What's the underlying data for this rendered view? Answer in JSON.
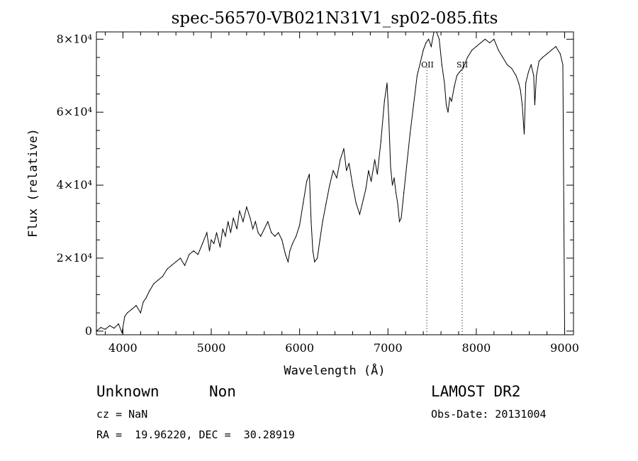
{
  "chart_data": {
    "type": "line",
    "title": "spec-56570-VB021N31V1_sp02-085.fits",
    "xlabel": "Wavelength (Å)",
    "ylabel": "Flux (relative)",
    "xlim": [
      3700,
      9100
    ],
    "ylim": [
      -1000,
      82000
    ],
    "xticks": [
      {
        "value": 4000,
        "label": "4000"
      },
      {
        "value": 5000,
        "label": "5000"
      },
      {
        "value": 6000,
        "label": "6000"
      },
      {
        "value": 7000,
        "label": "7000"
      },
      {
        "value": 8000,
        "label": "8000"
      },
      {
        "value": 9000,
        "label": "9000"
      }
    ],
    "yticks": [
      {
        "value": 0,
        "label": "0"
      },
      {
        "value": 20000,
        "label": "2×10⁴"
      },
      {
        "value": 40000,
        "label": "4×10⁴"
      },
      {
        "value": 60000,
        "label": "6×10⁴"
      },
      {
        "value": 80000,
        "label": "8×10⁴"
      }
    ],
    "grid": false,
    "series": [
      {
        "x": [
          3700,
          3750,
          3800,
          3850,
          3900,
          3950,
          3990,
          4020,
          4050,
          4100,
          4150,
          4200,
          4230,
          4260,
          4300,
          4350,
          4400,
          4450,
          4500,
          4550,
          4600,
          4650,
          4700,
          4750,
          4800,
          4850,
          4900,
          4950,
          4980,
          5000,
          5030,
          5060,
          5100,
          5130,
          5160,
          5190,
          5220,
          5250,
          5290,
          5320,
          5360,
          5400,
          5440,
          5470,
          5500,
          5530,
          5560,
          5600,
          5640,
          5680,
          5720,
          5760,
          5800,
          5840,
          5870,
          5890,
          5920,
          5960,
          6000,
          6040,
          6080,
          6110,
          6130,
          6150,
          6170,
          6200,
          6230,
          6260,
          6300,
          6340,
          6380,
          6420,
          6460,
          6500,
          6530,
          6560,
          6600,
          6640,
          6680,
          6720,
          6750,
          6780,
          6810,
          6850,
          6880,
          6920,
          6960,
          6990,
          7010,
          7030,
          7050,
          7070,
          7090,
          7110,
          7130,
          7150,
          7180,
          7210,
          7250,
          7290,
          7330,
          7370,
          7400,
          7430,
          7460,
          7490,
          7520,
          7550,
          7580,
          7610,
          7640,
          7660,
          7680,
          7700,
          7720,
          7750,
          7780,
          7810,
          7850,
          7900,
          7950,
          8000,
          8050,
          8100,
          8150,
          8200,
          8250,
          8300,
          8350,
          8400,
          8450,
          8480,
          8500,
          8520,
          8542,
          8560,
          8590,
          8620,
          8650,
          8662,
          8680,
          8710,
          8750,
          8800,
          8850,
          8900,
          8950,
          8980,
          9000
        ],
        "y": [
          0,
          1000,
          500,
          1500,
          800,
          2000,
          -500,
          4000,
          5000,
          6000,
          7000,
          5000,
          8000,
          9000,
          11000,
          13000,
          14000,
          15000,
          17000,
          18000,
          19000,
          20000,
          18000,
          21000,
          22000,
          21000,
          24000,
          27000,
          22000,
          25000,
          24000,
          27000,
          23000,
          28000,
          26000,
          30000,
          27000,
          31000,
          28000,
          33000,
          30000,
          34000,
          31000,
          28000,
          30000,
          27000,
          26000,
          28000,
          30000,
          27000,
          26000,
          27000,
          25000,
          21000,
          19000,
          22000,
          24000,
          26000,
          29000,
          35000,
          41000,
          43000,
          30000,
          22000,
          19000,
          20000,
          25000,
          30000,
          35000,
          40000,
          44000,
          42000,
          47000,
          50000,
          44000,
          46000,
          40000,
          35000,
          32000,
          36000,
          39000,
          44000,
          41000,
          47000,
          43000,
          52000,
          63000,
          68000,
          58000,
          45000,
          40000,
          42000,
          38000,
          35000,
          30000,
          31000,
          38000,
          45000,
          54000,
          62000,
          70000,
          74000,
          77000,
          79000,
          80000,
          78000,
          83000,
          82000,
          80000,
          73000,
          68000,
          62000,
          60000,
          64000,
          63000,
          67000,
          70000,
          71000,
          72000,
          75000,
          77000,
          78000,
          79000,
          80000,
          79000,
          80000,
          77000,
          75000,
          73000,
          72000,
          70000,
          68000,
          66000,
          62000,
          54000,
          68000,
          71000,
          73000,
          70000,
          62000,
          70000,
          74000,
          75000,
          76000,
          77000,
          78000,
          76000,
          73000,
          0
        ]
      }
    ],
    "annotations": [
      {
        "label": "OII",
        "x": 7440
      },
      {
        "label": "SII",
        "x": 7840
      }
    ]
  },
  "info": {
    "class_label": "Unknown",
    "subclass_label": "Non",
    "redshift": "cz = NaN",
    "coords": "RA =  19.96220, DEC =  30.28919",
    "survey": "LAMOST DR2",
    "obs_date": "Obs-Date: 20131004"
  }
}
